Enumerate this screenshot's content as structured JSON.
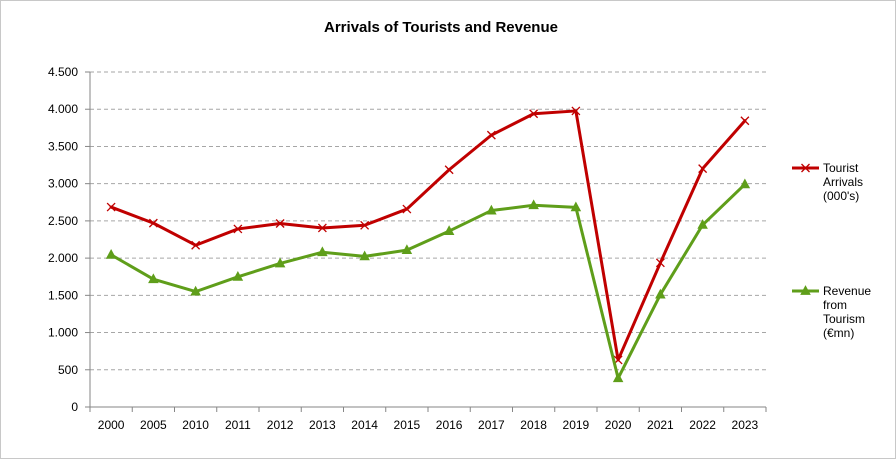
{
  "chart_data": {
    "type": "line",
    "title": "Arrivals of Tourists and Revenue",
    "categories": [
      "2000",
      "2005",
      "2010",
      "2011",
      "2012",
      "2013",
      "2014",
      "2015",
      "2016",
      "2017",
      "2018",
      "2019",
      "2020",
      "2021",
      "2022",
      "2023"
    ],
    "ylim": [
      0,
      4500
    ],
    "yticks": [
      0,
      500,
      1000,
      1500,
      2000,
      2500,
      3000,
      3500,
      4000,
      4500
    ],
    "ytick_labels": [
      "0",
      "500",
      "1.000",
      "1.500",
      "2.000",
      "2.500",
      "3.000",
      "3.500",
      "4.000",
      "4.500"
    ],
    "grid": true,
    "legend_position": "right",
    "series": [
      {
        "name_lines": [
          "Tourist",
          "Arrivals",
          "(000's)"
        ],
        "color": "#c00000",
        "marker": "x",
        "values": [
          2686,
          2470,
          2173,
          2392,
          2465,
          2405,
          2441,
          2659,
          3187,
          3652,
          3939,
          3977,
          632,
          1937,
          3202,
          3845
        ]
      },
      {
        "name_lines": [
          "Revenue",
          "from",
          "Tourism",
          "(€mn)"
        ],
        "color": "#5f9e1a",
        "marker": "triangle",
        "values": [
          2044,
          1717,
          1550,
          1749,
          1928,
          2079,
          2023,
          2107,
          2363,
          2639,
          2710,
          2682,
          386,
          1510,
          2446,
          2991
        ]
      }
    ]
  }
}
